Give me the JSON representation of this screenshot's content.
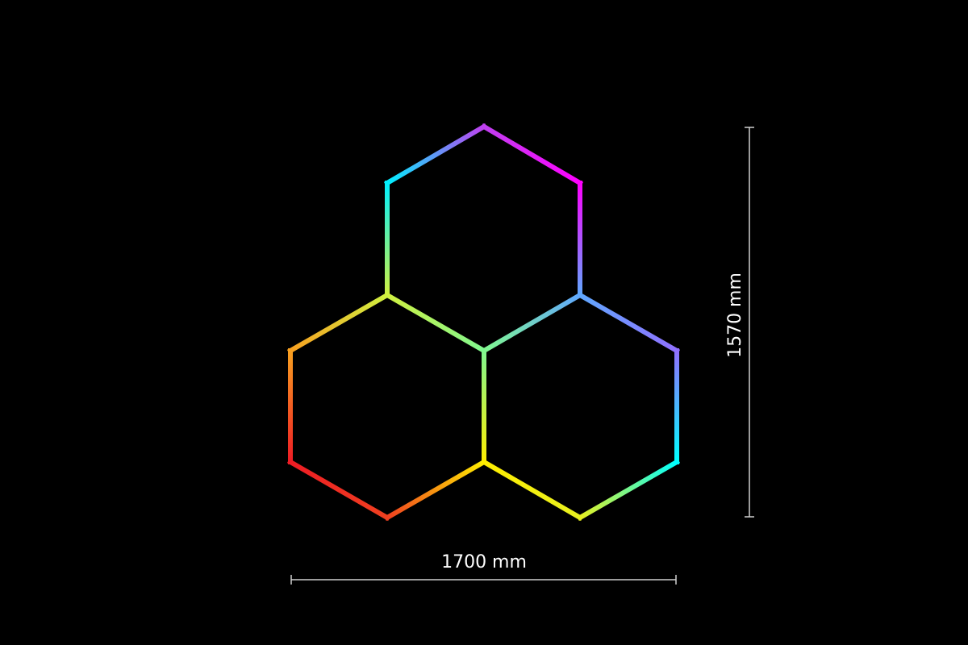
{
  "dimensions": {
    "width_label": "1700 mm",
    "height_label": "1570 mm"
  },
  "colors": {
    "background": "#000000",
    "dimension_line": "#d0d0d0",
    "vertex_gradient": {
      "top": "#c040f0",
      "top_right": "#ff00ff",
      "upper_right_inner": "#60a8ff",
      "right_top": "#9070ff",
      "right_bottom": "#00ffff",
      "bottom_right": "#e8f020",
      "center_bottom": "#ffee00",
      "center": "#80f890",
      "upper_left_inner": "#d0f040",
      "top_left": "#00f0ff",
      "left_top": "#f8a020",
      "left_bottom": "#ee1c24",
      "bottom_left": "#f04020"
    }
  }
}
